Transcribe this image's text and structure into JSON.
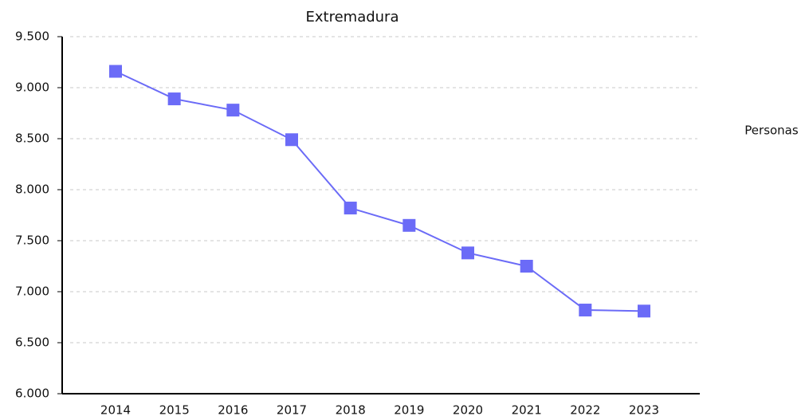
{
  "chart_data": {
    "type": "line",
    "title": "Extremadura",
    "categories": [
      "2014",
      "2015",
      "2016",
      "2017",
      "2018",
      "2019",
      "2020",
      "2021",
      "2022",
      "2023"
    ],
    "series": [
      {
        "name": "Personas",
        "color": "#6b6bf7",
        "values": [
          9160,
          8890,
          8780,
          8490,
          7820,
          7650,
          7380,
          7250,
          6820,
          6810
        ]
      }
    ],
    "ylim": [
      6000,
      9500
    ],
    "yticks": [
      {
        "value": 6000,
        "label": "6.000"
      },
      {
        "value": 6500,
        "label": "6.500"
      },
      {
        "value": 7000,
        "label": "7.000"
      },
      {
        "value": 7500,
        "label": "7.500"
      },
      {
        "value": 8000,
        "label": "8.000"
      },
      {
        "value": 8500,
        "label": "8.500"
      },
      {
        "value": 9000,
        "label": "9.000"
      },
      {
        "value": 9500,
        "label": "9.500"
      }
    ],
    "grid": true,
    "legend": "right"
  }
}
